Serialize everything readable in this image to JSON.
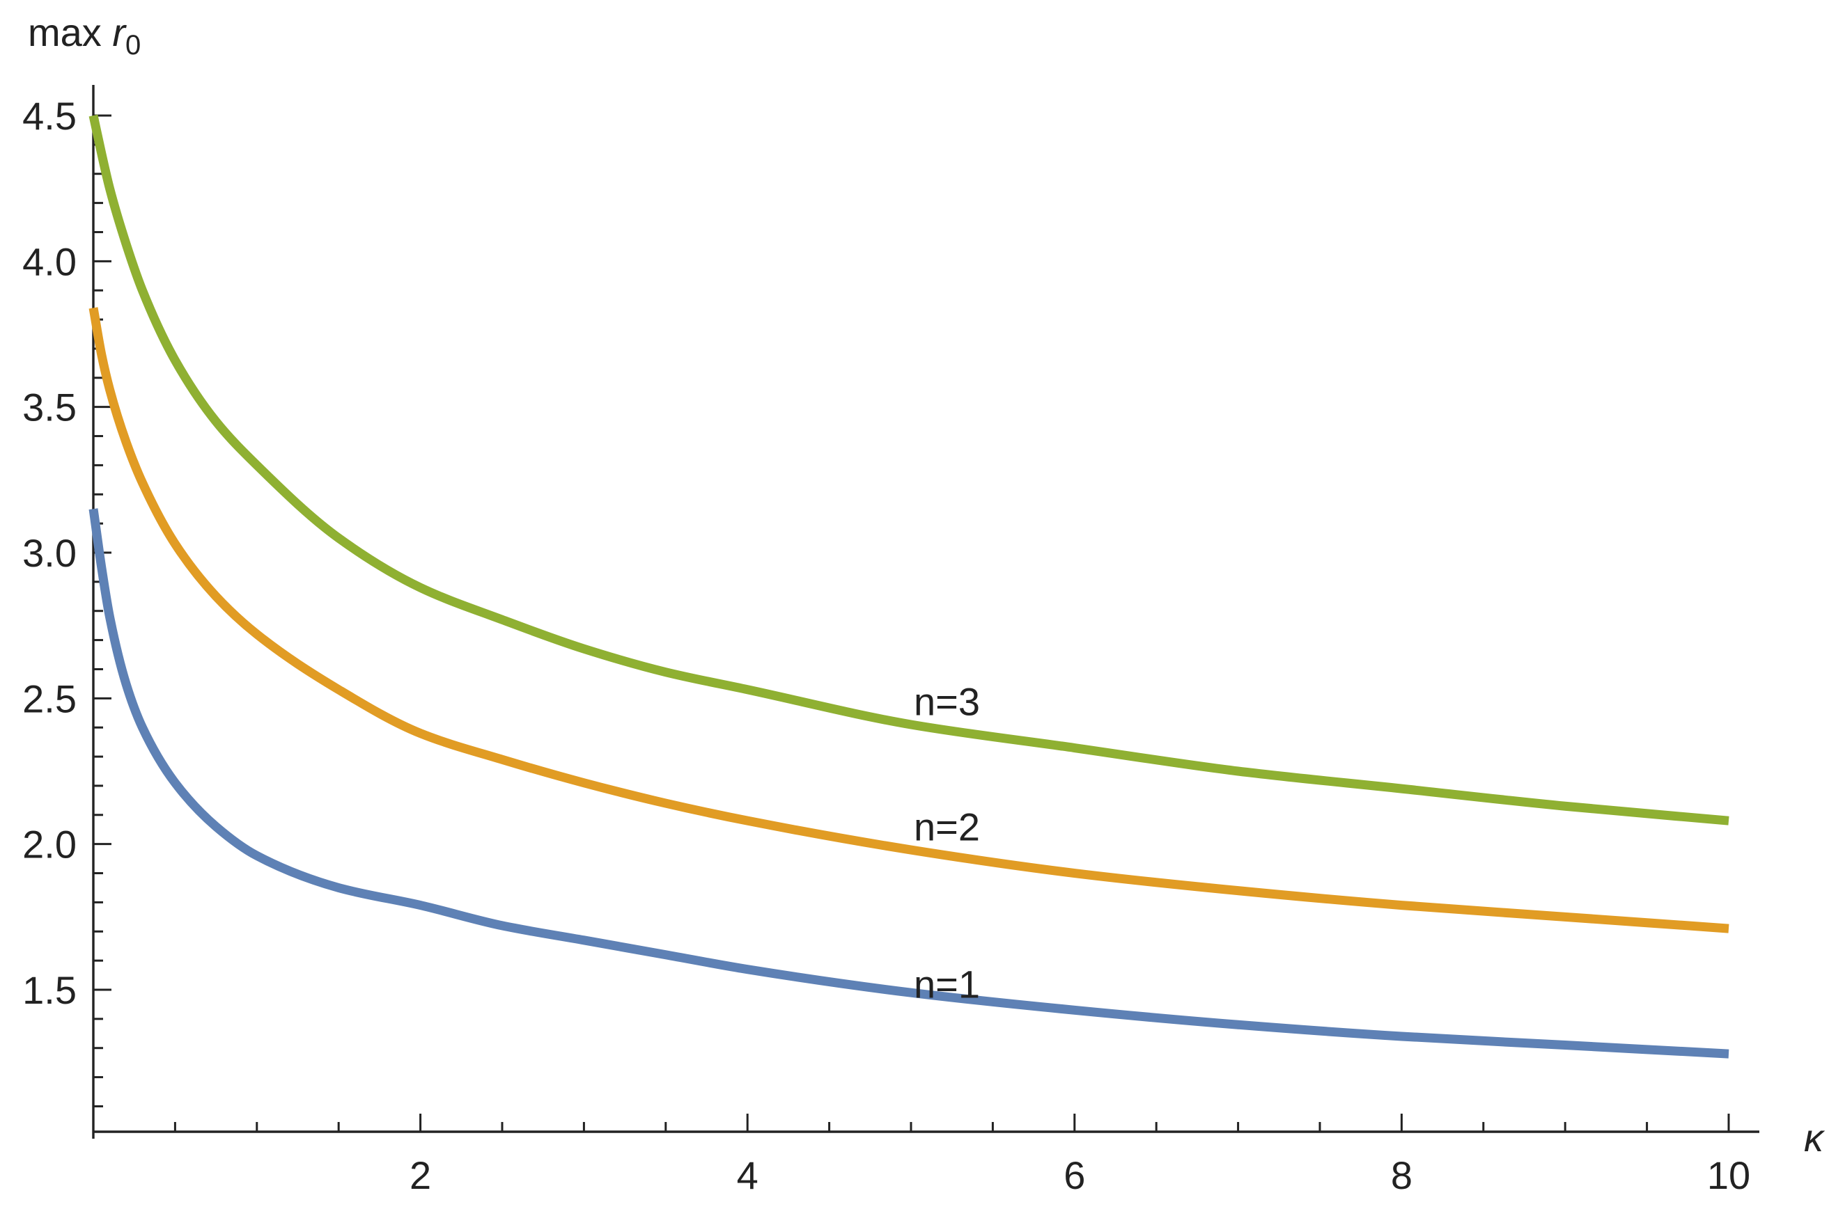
{
  "chart_data": {
    "type": "line",
    "title": "",
    "xlabel": "κ",
    "ylabel_prefix": "max ",
    "ylabel_var": "r",
    "ylabel_sub": "0",
    "xlim": [
      0,
      10.2
    ],
    "ylim": [
      1.0,
      4.6
    ],
    "x_ticks": [
      2,
      4,
      6,
      8,
      10
    ],
    "y_ticks": [
      1.5,
      2.0,
      2.5,
      3.0,
      3.5,
      4.0,
      4.5
    ],
    "x_tick_labels": [
      "2",
      "4",
      "6",
      "8",
      "10"
    ],
    "y_tick_labels": [
      "1.5",
      "2.0",
      "2.5",
      "3.0",
      "3.5",
      "4.0",
      "4.5"
    ],
    "x_minor_step": 0.5,
    "y_minor_step": 0.1,
    "grid": false,
    "legend": "none",
    "series": [
      {
        "name": "n=1",
        "color": "#5e81b5",
        "label_at": [
          5.0,
          1.52
        ],
        "x": [
          0,
          0.05,
          0.1,
          0.2,
          0.3,
          0.5,
          0.75,
          1,
          1.5,
          2,
          2.5,
          3,
          3.5,
          4,
          5,
          6,
          7,
          8,
          9,
          10
        ],
        "y": [
          3.15,
          2.95,
          2.78,
          2.55,
          2.4,
          2.21,
          2.06,
          1.96,
          1.85,
          1.79,
          1.72,
          1.67,
          1.62,
          1.57,
          1.49,
          1.43,
          1.38,
          1.34,
          1.31,
          1.28
        ]
      },
      {
        "name": "n=2",
        "color": "#e19c24",
        "label_at": [
          5.0,
          2.06
        ],
        "x": [
          0,
          0.05,
          0.1,
          0.2,
          0.3,
          0.5,
          0.75,
          1,
          1.5,
          2,
          2.5,
          3,
          3.5,
          4,
          5,
          6,
          7,
          8,
          9,
          10
        ],
        "y": [
          3.84,
          3.68,
          3.56,
          3.38,
          3.24,
          3.03,
          2.85,
          2.72,
          2.53,
          2.38,
          2.29,
          2.21,
          2.14,
          2.08,
          1.98,
          1.9,
          1.84,
          1.79,
          1.75,
          1.71
        ]
      },
      {
        "name": "n=3",
        "color": "#8fb032",
        "label_at": [
          5.0,
          2.49
        ],
        "x": [
          0,
          0.05,
          0.1,
          0.2,
          0.3,
          0.5,
          0.75,
          1,
          1.5,
          2,
          2.5,
          3,
          3.5,
          4,
          5,
          6,
          7,
          8,
          9,
          10
        ],
        "y": [
          4.5,
          4.37,
          4.25,
          4.06,
          3.9,
          3.66,
          3.45,
          3.3,
          3.05,
          2.88,
          2.77,
          2.67,
          2.59,
          2.53,
          2.41,
          2.33,
          2.25,
          2.19,
          2.13,
          2.08
        ]
      }
    ]
  }
}
